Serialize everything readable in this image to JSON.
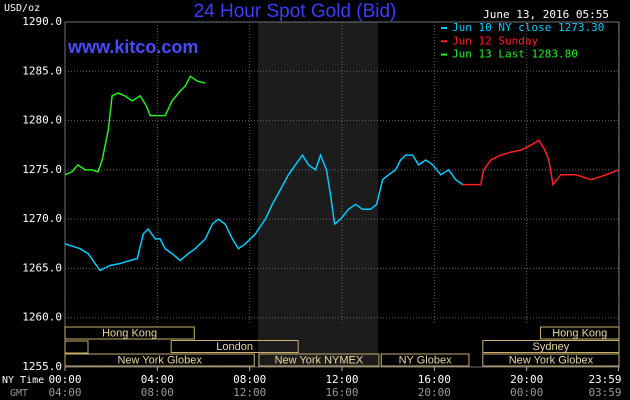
{
  "chart_data": {
    "type": "line",
    "title": "24 Hour Spot Gold (Bid)",
    "subtitle": "www.kitco.com",
    "timestamp": "June 13, 2016 05:55",
    "y_label": "USD/oz",
    "x_label": "NY Time",
    "x2_label": "GMT",
    "xlim": [
      0,
      24
    ],
    "ylim": [
      1255,
      1290
    ],
    "grid": true,
    "yticks": [
      {
        "value": 1255,
        "label": "1255.0"
      },
      {
        "value": 1260,
        "label": "1260.0"
      },
      {
        "value": 1265,
        "label": "1265.0"
      },
      {
        "value": 1270,
        "label": "1270.0"
      },
      {
        "value": 1275,
        "label": "1275.0"
      },
      {
        "value": 1280,
        "label": "1280.0"
      },
      {
        "value": 1285,
        "label": "1285.0"
      },
      {
        "value": 1290,
        "label": "1290.0"
      }
    ],
    "xticks": [
      {
        "value": 0,
        "label": "00:00"
      },
      {
        "value": 4,
        "label": "04:00"
      },
      {
        "value": 8,
        "label": "08:00"
      },
      {
        "value": 12,
        "label": "12:00"
      },
      {
        "value": 16,
        "label": "16:00"
      },
      {
        "value": 20,
        "label": "20:00"
      },
      {
        "value": 23.98,
        "label": "23:59"
      }
    ],
    "x2ticks": [
      {
        "value": 0,
        "label": "04:00"
      },
      {
        "value": 4,
        "label": "08:00"
      },
      {
        "value": 8,
        "label": "12:00"
      },
      {
        "value": 12,
        "label": "16:00"
      },
      {
        "value": 16,
        "label": "20:00"
      },
      {
        "value": 20,
        "label": "00:00"
      },
      {
        "value": 23.98,
        "label": "03:59"
      }
    ],
    "series": [
      {
        "name": "Jun 10 NY close 1273.30",
        "color": "#00ccff",
        "x": [
          0,
          0.65,
          1.0,
          1.3,
          1.52,
          1.95,
          2.39,
          2.82,
          3.13,
          3.39,
          3.6,
          3.91,
          4.12,
          4.34,
          4.64,
          4.99,
          5.34,
          5.64,
          6.08,
          6.38,
          6.64,
          6.94,
          7.25,
          7.51,
          7.81,
          8.25,
          8.68,
          8.98,
          9.33,
          9.68,
          9.98,
          10.29,
          10.55,
          10.85,
          11.07,
          11.33,
          11.5,
          11.68,
          11.94,
          12.28,
          12.59,
          12.89,
          13.24,
          13.5,
          13.76,
          14.02,
          14.32,
          14.54,
          14.76,
          15.06,
          15.32,
          15.63,
          15.93,
          16.28,
          16.62,
          16.93,
          17.23
        ],
        "values": [
          1267.5,
          1267,
          1266.5,
          1265.5,
          1264.8,
          1265.3,
          1265.5,
          1265.8,
          1266,
          1268.5,
          1269,
          1268,
          1268,
          1267,
          1266.5,
          1265.8,
          1266.5,
          1267,
          1268,
          1269.5,
          1270,
          1269.5,
          1268,
          1267,
          1267.5,
          1268.5,
          1270,
          1271.5,
          1273,
          1274.5,
          1275.5,
          1276.5,
          1275.5,
          1275,
          1276.5,
          1275,
          1272.5,
          1269.5,
          1270,
          1271,
          1271.5,
          1271,
          1271,
          1271.5,
          1274,
          1274.5,
          1275,
          1276,
          1276.5,
          1276.5,
          1275.5,
          1276,
          1275.5,
          1274.5,
          1275,
          1274,
          1273.5
        ]
      },
      {
        "name": "Jun 12 Sunday",
        "color": "#ff2020",
        "x": [
          17.23,
          18.01,
          18.14,
          18.45,
          18.88,
          19.31,
          19.75,
          20.18,
          20.53,
          20.79,
          20.96,
          21.14,
          21.48,
          22.14,
          22.79,
          23.44,
          23.98
        ],
        "values": [
          1273.5,
          1273.5,
          1275,
          1276,
          1276.5,
          1276.8,
          1277,
          1277.5,
          1278,
          1277,
          1276,
          1273.5,
          1274.5,
          1274.5,
          1274,
          1274.5,
          1275
        ]
      },
      {
        "name": "Jun 13 Last 1283.80",
        "color": "#22ee22",
        "x": [
          0,
          0.3,
          0.56,
          0.87,
          1.17,
          1.43,
          1.61,
          1.87,
          2.04,
          2.3,
          2.6,
          2.91,
          3.26,
          3.52,
          3.69,
          4.04,
          4.34,
          4.64,
          4.99,
          5.21,
          5.43,
          5.73,
          6.08
        ],
        "values": [
          1274.5,
          1274.8,
          1275.5,
          1275,
          1275,
          1274.8,
          1276,
          1279,
          1282.5,
          1282.8,
          1282.5,
          1282,
          1282.5,
          1281.5,
          1280.5,
          1280.5,
          1280.5,
          1282,
          1283,
          1283.5,
          1284.5,
          1284,
          1283.8
        ]
      }
    ],
    "sessions": [
      [
        {
          "name": "Hong Kong",
          "start": 0,
          "end": 5.6
        },
        {
          "name": "Hong Kong",
          "start": 20.6,
          "end": 24
        }
      ],
      [
        {
          "name": "London",
          "start": 4.6,
          "end": 10.1
        },
        {
          "name": "Sydney",
          "start": 18.1,
          "end": 24
        }
      ],
      [
        {
          "name": "New York Globex",
          "start": 0,
          "end": 8.2
        },
        {
          "name": "New York NYMEX",
          "start": 8.4,
          "end": 13.6
        },
        {
          "name": "NY Globex",
          "start": 13.7,
          "end": 17.5
        },
        {
          "name": "New York Globex",
          "start": 18.1,
          "end": 24
        }
      ]
    ]
  }
}
